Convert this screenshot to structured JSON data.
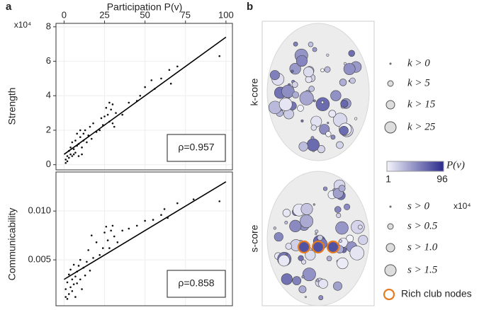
{
  "panel_labels": [
    "a",
    "b"
  ],
  "chart_data": [
    {
      "type": "scatter",
      "xlabel": "Participation P(v)",
      "ylabel": "Strength",
      "y_multiplier": "x10⁴",
      "xlim": [
        -5,
        104
      ],
      "xticks": [
        0,
        25,
        50,
        75,
        100
      ],
      "show_xtick_labels": true,
      "ylim": [
        -0.3,
        8.2
      ],
      "yticks": [
        0,
        2,
        4,
        6,
        8
      ],
      "grid": true,
      "color": "#111111",
      "x": [
        1,
        1,
        2,
        2,
        3,
        3,
        4,
        4,
        5,
        5,
        6,
        6,
        7,
        7,
        8,
        8,
        9,
        9,
        10,
        10,
        11,
        11,
        12,
        12,
        13,
        14,
        15,
        16,
        17,
        18,
        20,
        22,
        23,
        24,
        25,
        26,
        27,
        28,
        28,
        29,
        30,
        30,
        31,
        32,
        36,
        40,
        45,
        47,
        50,
        54,
        56,
        60,
        65,
        66,
        70,
        96
      ],
      "values": [
        0.1,
        0.3,
        0.2,
        0.5,
        0.4,
        0.8,
        0.6,
        1.0,
        0.5,
        1.3,
        0.9,
        0.6,
        1.4,
        0.7,
        1.1,
        1.8,
        0.5,
        1.2,
        1.6,
        2.0,
        1.0,
        0.6,
        1.8,
        1.4,
        2.0,
        1.3,
        1.7,
        2.2,
        1.5,
        2.4,
        1.9,
        2.0,
        2.7,
        2.3,
        2.8,
        3.3,
        2.9,
        3.6,
        2.5,
        3.2,
        3.5,
        2.4,
        2.2,
        3.0,
        2.9,
        3.6,
        3.7,
        4.0,
        4.5,
        4.9,
        4.4,
        5.0,
        5.5,
        4.7,
        5.7,
        6.3
      ],
      "fit": {
        "x": [
          0,
          100
        ],
        "values": [
          0.6,
          7.4
        ]
      },
      "annotation": "ρ=0.957"
    },
    {
      "type": "scatter",
      "ylabel": "Communicability",
      "xlim": [
        -5,
        104
      ],
      "xticks": [
        0,
        25,
        50,
        75,
        100
      ],
      "show_xtick_labels": false,
      "ylim": [
        0.0003,
        0.014
      ],
      "yticks": [
        0.005,
        {
          "value": 0.01,
          "label": "0.010"
        }
      ],
      "grid": true,
      "color": "#111111",
      "x": [
        1,
        1,
        2,
        2,
        3,
        3,
        4,
        4,
        5,
        5,
        6,
        6,
        7,
        7,
        8,
        8,
        9,
        10,
        10,
        11,
        12,
        13,
        14,
        15,
        16,
        17,
        18,
        20,
        22,
        24,
        25,
        26,
        27,
        28,
        29,
        30,
        31,
        33,
        36,
        40,
        45,
        50,
        55,
        60,
        62,
        64,
        70,
        80,
        96
      ],
      "values": [
        0.0012,
        0.002,
        0.001,
        0.0027,
        0.0015,
        0.0035,
        0.0022,
        0.004,
        0.0018,
        0.003,
        0.0025,
        0.0045,
        0.0012,
        0.0033,
        0.0038,
        0.0026,
        0.0044,
        0.003,
        0.005,
        0.002,
        0.0042,
        0.0034,
        0.0048,
        0.006,
        0.0039,
        0.0075,
        0.0052,
        0.0068,
        0.0055,
        0.0062,
        0.0078,
        0.0084,
        0.007,
        0.0062,
        0.008,
        0.0085,
        0.0074,
        0.0068,
        0.008,
        0.0082,
        0.0085,
        0.009,
        0.0091,
        0.0096,
        0.0102,
        0.0093,
        0.0108,
        0.0112,
        0.011
      ],
      "fit": {
        "x": [
          0,
          100
        ],
        "values": [
          0.003,
          0.013
        ]
      },
      "annotation": "ρ=0.858"
    }
  ],
  "brains": {
    "row_labels": [
      "k-core",
      "s-core"
    ],
    "k_legend": [
      "k > 0",
      "k > 5",
      "k > 15",
      "k > 25"
    ],
    "s_legend": [
      "s > 0",
      "s > 0.5",
      "s > 1.0",
      "s > 1.5"
    ],
    "s_multiplier": "x10⁴",
    "colorbar": {
      "label": "P(v)",
      "lim": [
        1,
        96
      ],
      "colors": [
        "#f4f4fc",
        "#2a2a8c"
      ]
    },
    "rich_club": "Rich club nodes",
    "rich_club_color": "#e87a1e"
  }
}
